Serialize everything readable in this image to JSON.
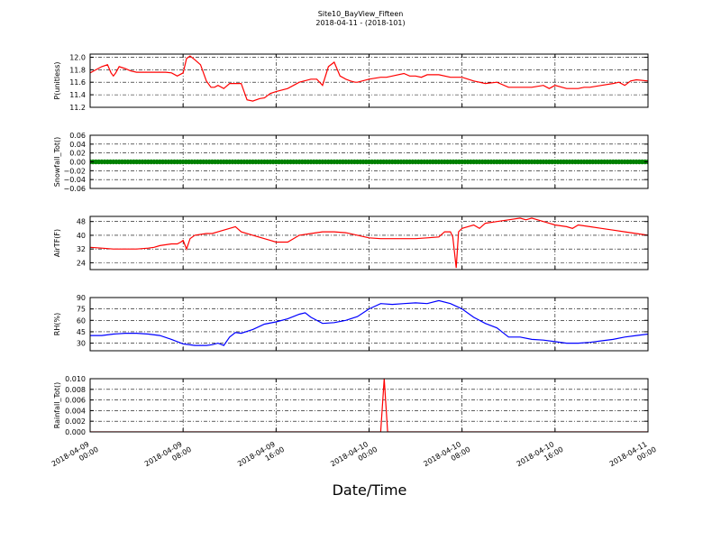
{
  "title": "Site10_BayView_Fifteen",
  "subtitle": "2018-04-11 - (2018-101)",
  "xlabel": "Date/Time",
  "colors": {
    "red": "#ff0000",
    "green": "#008000",
    "blue": "#0000ff",
    "axis": "#000000"
  },
  "xticks": [
    {
      "label1": "2018-04-09",
      "label2": "00:00",
      "hours": 0
    },
    {
      "label1": "2018-04-09",
      "label2": "08:00",
      "hours": 8
    },
    {
      "label1": "2018-04-09",
      "label2": "16:00",
      "hours": 16
    },
    {
      "label1": "2018-04-10",
      "label2": "00:00",
      "hours": 24
    },
    {
      "label1": "2018-04-10",
      "label2": "08:00",
      "hours": 32
    },
    {
      "label1": "2018-04-10",
      "label2": "16:00",
      "hours": 40
    },
    {
      "label1": "2018-04-11",
      "label2": "00:00",
      "hours": 48
    }
  ],
  "chart_data": [
    {
      "type": "line",
      "ylabel": "P(unitless)",
      "ylim": [
        11.2,
        12.05
      ],
      "yticks": [
        "11.2",
        "11.4",
        "11.6",
        "11.8",
        "12.0"
      ],
      "ytick_values": [
        11.2,
        11.4,
        11.6,
        11.8,
        12.0
      ],
      "color": "#ff0000",
      "grid": true,
      "x_hours": [
        0,
        0.5,
        1,
        1.5,
        1.8,
        2,
        2.2,
        2.5,
        3,
        3.5,
        4,
        4.5,
        5,
        5.5,
        6,
        6.5,
        7,
        7.5,
        8,
        8.3,
        8.6,
        9,
        9.5,
        10,
        10.4,
        10.7,
        11,
        11.5,
        12,
        12.5,
        13,
        13.5,
        14,
        14.3,
        14.6,
        15,
        15.5,
        16,
        17,
        18,
        19,
        19.5,
        20,
        20.5,
        21,
        21.5,
        22,
        22.4,
        22.8,
        23,
        24,
        25,
        25.5,
        26,
        27,
        27.5,
        28,
        28.5,
        29,
        30,
        31,
        32,
        33,
        34,
        35,
        36,
        37,
        38,
        39,
        39.5,
        40,
        41,
        42,
        42.5,
        43,
        44,
        45,
        45.5,
        46,
        46.5,
        47,
        48
      ],
      "values": [
        11.75,
        11.8,
        11.85,
        11.88,
        11.75,
        11.7,
        11.75,
        11.85,
        11.82,
        11.78,
        11.76,
        11.76,
        11.76,
        11.76,
        11.76,
        11.76,
        11.75,
        11.7,
        11.75,
        11.98,
        12.02,
        11.96,
        11.88,
        11.62,
        11.52,
        11.52,
        11.55,
        11.5,
        11.58,
        11.58,
        11.58,
        11.32,
        11.3,
        11.32,
        11.34,
        11.35,
        11.42,
        11.45,
        11.5,
        11.6,
        11.65,
        11.65,
        11.55,
        11.85,
        11.92,
        11.7,
        11.65,
        11.62,
        11.6,
        11.6,
        11.65,
        11.68,
        11.68,
        11.7,
        11.74,
        11.7,
        11.7,
        11.68,
        11.72,
        11.72,
        11.68,
        11.68,
        11.62,
        11.58,
        11.6,
        11.52,
        11.52,
        11.52,
        11.55,
        11.5,
        11.55,
        11.5,
        11.5,
        11.52,
        11.52,
        11.55,
        11.58,
        11.6,
        11.55,
        11.62,
        11.64,
        11.62
      ],
      "xlim_hours": [
        0,
        48
      ]
    },
    {
      "type": "line",
      "ylabel": "Snowfall_Tot()",
      "ylim": [
        -0.06,
        0.06
      ],
      "yticks": [
        "−0.06",
        "−0.04",
        "−0.02",
        "0.00",
        "0.02",
        "0.04",
        "0.06"
      ],
      "ytick_values": [
        -0.06,
        -0.04,
        -0.02,
        0.0,
        0.02,
        0.04,
        0.06
      ],
      "color": "#008000",
      "grid": true,
      "markers": true,
      "x_hours": [
        0,
        48
      ],
      "values": [
        0.0,
        0.0
      ],
      "xlim_hours": [
        0,
        48
      ]
    },
    {
      "type": "line",
      "ylabel": "AirTF(F)",
      "ylim": [
        20,
        51
      ],
      "yticks": [
        "24",
        "32",
        "40",
        "48"
      ],
      "ytick_values": [
        24,
        32,
        40,
        48
      ],
      "color": "#ff0000",
      "grid": true,
      "x_hours": [
        0,
        1,
        2,
        3,
        4,
        5,
        5.5,
        6,
        7,
        7.5,
        7.8,
        8,
        8.3,
        8.6,
        9,
        10,
        10.5,
        11,
        11.5,
        12,
        12.5,
        13,
        14,
        15,
        15.5,
        16,
        17,
        18,
        19,
        20,
        21,
        22,
        23,
        24,
        25,
        26,
        27,
        28,
        29,
        30,
        30.5,
        31,
        31.2,
        31.5,
        31.7,
        32,
        32.5,
        33,
        33.5,
        34,
        35,
        36,
        37,
        37.5,
        38,
        38.5,
        39,
        39.5,
        40,
        41,
        41.5,
        42,
        43,
        44,
        45,
        46,
        47,
        48
      ],
      "values": [
        33,
        32.5,
        32,
        32,
        32,
        32.5,
        33,
        34,
        35,
        35,
        36,
        37,
        32,
        38,
        40,
        41,
        41,
        42,
        43,
        44,
        45,
        42,
        40,
        38,
        37,
        36,
        36,
        40,
        41,
        42,
        42,
        41.5,
        40,
        38.5,
        38,
        38,
        38,
        38,
        38.5,
        39,
        42,
        42,
        39,
        21,
        42,
        44,
        45,
        46,
        44,
        47,
        48,
        49,
        50,
        49,
        50,
        49,
        48,
        47,
        46,
        45,
        44,
        46,
        45,
        44,
        43,
        42,
        41,
        40
      ]
    },
    {
      "type": "line",
      "ylabel": "RH(%)",
      "ylim": [
        20,
        90
      ],
      "yticks": [
        "30",
        "45",
        "60",
        "75",
        "90"
      ],
      "ytick_values": [
        30,
        45,
        60,
        75,
        90
      ],
      "color": "#0000ff",
      "grid": true,
      "x_hours": [
        0,
        1,
        2,
        3,
        4,
        5,
        6,
        7,
        8,
        9,
        10,
        10.5,
        11,
        11.5,
        12,
        12.5,
        13,
        14,
        15,
        16,
        17,
        18,
        18.5,
        19,
        20,
        21,
        22,
        23,
        24,
        25,
        26,
        27,
        28,
        29,
        30,
        31,
        32,
        33,
        34,
        35,
        36,
        37,
        38,
        39,
        40,
        41,
        42,
        43,
        44,
        45,
        46,
        47,
        48
      ],
      "values": [
        40,
        40,
        42,
        43,
        43,
        42,
        40,
        35,
        29,
        27,
        27,
        28,
        30,
        27,
        38,
        44,
        43,
        48,
        55,
        58,
        62,
        68,
        70,
        64,
        56,
        57,
        60,
        65,
        75,
        82,
        81,
        82,
        83,
        82,
        86,
        82,
        75,
        64,
        56,
        50,
        38,
        38,
        35,
        34,
        32,
        30,
        30,
        31,
        33,
        35,
        38,
        40,
        42
      ]
    },
    {
      "type": "line",
      "ylabel": "Rainfall_Tot()",
      "ylim": [
        0,
        0.01
      ],
      "yticks": [
        "0.000",
        "0.002",
        "0.004",
        "0.006",
        "0.008",
        "0.010"
      ],
      "ytick_values": [
        0.0,
        0.002,
        0.004,
        0.006,
        0.008,
        0.01
      ],
      "color": "#ff0000",
      "grid": true,
      "x_hours": [
        0,
        25,
        25.3,
        25.6,
        48
      ],
      "values": [
        0,
        0,
        0.01,
        0,
        0
      ]
    }
  ]
}
